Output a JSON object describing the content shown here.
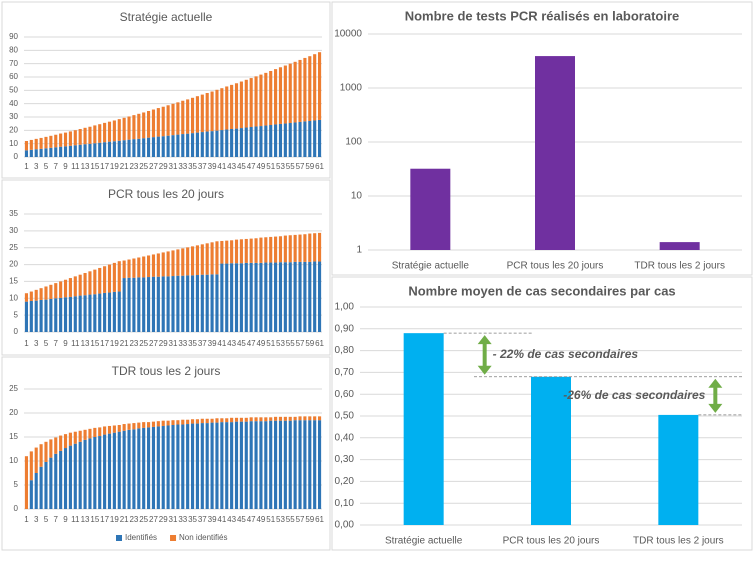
{
  "chart_data": [
    {
      "type": "stackedbar",
      "title": "Stratégie actuelle",
      "categories": [
        1,
        null,
        3,
        null,
        5,
        null,
        7,
        null,
        9,
        null,
        11,
        null,
        13,
        null,
        15,
        null,
        17,
        null,
        19,
        null,
        21,
        null,
        23,
        null,
        25,
        null,
        27,
        null,
        29,
        null,
        31,
        null,
        33,
        null,
        35,
        null,
        37,
        null,
        39,
        null,
        41,
        null,
        43,
        null,
        45,
        null,
        47,
        null,
        49,
        null,
        51,
        null,
        53,
        null,
        55,
        null,
        57,
        null,
        59,
        null,
        61
      ],
      "series": [
        {
          "color": "#2e75b6",
          "values": [
            5.0,
            5.4,
            5.8,
            6.1,
            6.5,
            6.9,
            7.3,
            7.7,
            8.0,
            8.4,
            8.8,
            9.2,
            9.6,
            9.9,
            10.3,
            10.7,
            11.1,
            11.5,
            11.8,
            12.2,
            12.6,
            13.0,
            13.4,
            13.7,
            14.1,
            14.5,
            14.9,
            15.3,
            15.6,
            16.0,
            16.4,
            16.8,
            17.2,
            17.5,
            17.9,
            18.3,
            18.7,
            19.1,
            19.4,
            19.8,
            20.2,
            20.6,
            21.0,
            21.3,
            21.7,
            22.1,
            22.5,
            22.9,
            23.2,
            23.6,
            24.0,
            24.4,
            24.8,
            25.1,
            25.5,
            25.9,
            26.3,
            26.7,
            27.0,
            27.4,
            27.8
          ]
        },
        {
          "color": "#ed7d31",
          "values": [
            7.0,
            7.4,
            7.8,
            8.2,
            8.6,
            9.0,
            9.4,
            9.9,
            10.3,
            10.8,
            11.3,
            11.8,
            12.3,
            12.8,
            13.4,
            13.9,
            14.5,
            15.0,
            15.6,
            16.2,
            16.8,
            17.4,
            18.0,
            18.7,
            19.3,
            20.0,
            20.7,
            21.4,
            22.1,
            22.8,
            23.5,
            24.2,
            25.0,
            25.7,
            26.5,
            27.3,
            28.1,
            28.9,
            29.7,
            30.6,
            31.4,
            32.3,
            33.1,
            34.0,
            34.9,
            35.8,
            36.7,
            37.6,
            38.6,
            39.5,
            40.5,
            41.5,
            42.5,
            43.5,
            44.5,
            45.5,
            46.5,
            47.6,
            48.6,
            49.7,
            50.8
          ]
        }
      ],
      "ylim": [
        0,
        90
      ],
      "yticks": [
        0,
        10,
        20,
        30,
        40,
        50,
        60,
        70,
        80,
        90
      ],
      "grid": true
    },
    {
      "type": "stackedbar",
      "title": "PCR tous les 20 jours",
      "categories": [
        1,
        null,
        3,
        null,
        5,
        null,
        7,
        null,
        9,
        null,
        11,
        null,
        13,
        null,
        15,
        null,
        17,
        null,
        19,
        null,
        21,
        null,
        23,
        null,
        25,
        null,
        27,
        null,
        29,
        null,
        31,
        null,
        33,
        null,
        35,
        null,
        37,
        null,
        39,
        null,
        41,
        null,
        43,
        null,
        45,
        null,
        47,
        null,
        49,
        null,
        51,
        null,
        53,
        null,
        55,
        null,
        57,
        null,
        59,
        null,
        61
      ],
      "series": [
        {
          "color": "#2e75b6",
          "values": [
            9.0,
            9.2,
            9.3,
            9.5,
            9.6,
            9.8,
            10.0,
            10.1,
            10.3,
            10.4,
            10.6,
            10.8,
            10.9,
            11.1,
            11.2,
            11.4,
            11.6,
            11.7,
            11.9,
            12.0,
            16.0,
            16.1,
            16.1,
            16.2,
            16.2,
            16.3,
            16.4,
            16.4,
            16.5,
            16.5,
            16.6,
            16.7,
            16.7,
            16.8,
            16.8,
            16.9,
            17.0,
            17.0,
            17.1,
            17.1,
            20.3,
            20.3,
            20.4,
            20.4,
            20.4,
            20.5,
            20.5,
            20.5,
            20.5,
            20.6,
            20.6,
            20.6,
            20.7,
            20.7,
            20.7,
            20.8,
            20.8,
            20.8,
            20.8,
            20.9,
            20.9
          ]
        },
        {
          "color": "#ed7d31",
          "values": [
            2.5,
            2.8,
            3.2,
            3.5,
            3.9,
            4.2,
            4.5,
            4.9,
            5.2,
            5.6,
            5.9,
            6.2,
            6.6,
            6.9,
            7.3,
            7.6,
            7.9,
            8.3,
            8.6,
            9.0,
            5.2,
            5.4,
            5.7,
            5.9,
            6.2,
            6.4,
            6.6,
            6.9,
            7.1,
            7.4,
            7.6,
            7.8,
            8.1,
            8.3,
            8.6,
            8.8,
            9.0,
            9.3,
            9.5,
            9.8,
            6.7,
            6.8,
            6.8,
            7.0,
            7.1,
            7.1,
            7.2,
            7.3,
            7.5,
            7.5,
            7.6,
            7.7,
            7.7,
            7.9,
            8.0,
            8.0,
            8.1,
            8.2,
            8.4,
            8.4,
            8.5
          ]
        }
      ],
      "ylim": [
        0,
        35
      ],
      "yticks": [
        0,
        5,
        10,
        15,
        20,
        25,
        30,
        35
      ],
      "grid": true
    },
    {
      "type": "stackedbar",
      "title": "TDR tous les 2 jours",
      "categories": [
        1,
        null,
        3,
        null,
        5,
        null,
        7,
        null,
        9,
        null,
        11,
        null,
        13,
        null,
        15,
        null,
        17,
        null,
        19,
        null,
        21,
        null,
        23,
        null,
        25,
        null,
        27,
        null,
        29,
        null,
        31,
        null,
        33,
        null,
        35,
        null,
        37,
        null,
        39,
        null,
        41,
        null,
        43,
        null,
        45,
        null,
        47,
        null,
        49,
        null,
        51,
        null,
        53,
        null,
        55,
        null,
        57,
        null,
        59,
        null,
        61
      ],
      "series": [
        {
          "name": "Identifiés",
          "color": "#2e75b6",
          "values": [
            0,
            6.0,
            7.5,
            8.8,
            9.8,
            10.7,
            11.5,
            12.1,
            12.7,
            13.2,
            13.6,
            14.0,
            14.4,
            14.7,
            15.0,
            15.2,
            15.5,
            15.7,
            15.9,
            16.1,
            16.3,
            16.5,
            16.6,
            16.8,
            16.9,
            17.0,
            17.1,
            17.2,
            17.3,
            17.4,
            17.5,
            17.6,
            17.6,
            17.7,
            17.8,
            17.8,
            17.9,
            17.9,
            18.0,
            18.0,
            18.1,
            18.1,
            18.1,
            18.2,
            18.2,
            18.2,
            18.3,
            18.3,
            18.3,
            18.3,
            18.4,
            18.4,
            18.4,
            18.4,
            18.4,
            18.5,
            18.5,
            18.5,
            18.5,
            18.5,
            18.5
          ]
        },
        {
          "name": "Non identifiés",
          "color": "#ed7d31",
          "values": [
            11.0,
            6.0,
            5.3,
            4.7,
            4.2,
            3.8,
            3.4,
            3.2,
            2.9,
            2.7,
            2.5,
            2.3,
            2.1,
            2.0,
            1.9,
            1.8,
            1.7,
            1.6,
            1.5,
            1.4,
            1.4,
            1.3,
            1.3,
            1.2,
            1.2,
            1.1,
            1.1,
            1.1,
            1.1,
            1.0,
            1.0,
            0.9,
            1.0,
            0.9,
            0.9,
            0.9,
            0.9,
            0.9,
            0.8,
            0.9,
            0.8,
            0.8,
            0.9,
            0.8,
            0.8,
            0.8,
            0.8,
            0.8,
            0.8,
            0.8,
            0.7,
            0.8,
            0.8,
            0.8,
            0.8,
            0.7,
            0.8,
            0.8,
            0.8,
            0.8,
            0.8
          ]
        }
      ],
      "ylim": [
        0,
        25
      ],
      "yticks": [
        0,
        5,
        10,
        15,
        20,
        25
      ],
      "grid": true,
      "legend": "bottom"
    },
    {
      "type": "bar",
      "title": "Nombre de tests PCR réalisés en laboratoire",
      "categories": [
        "Stratégie actuelle",
        "PCR tous les 20 jours",
        "TDR tous les 2 jours"
      ],
      "values": [
        32,
        3900,
        1.4
      ],
      "color": "#7030a0",
      "log_scale": true,
      "ylim": [
        1,
        10000
      ],
      "yticks": [
        1,
        10,
        100,
        1000,
        10000
      ],
      "grid": true
    },
    {
      "type": "bar",
      "title": "Nombre moyen de cas secondaires par cas",
      "categories": [
        "Stratégie actuelle",
        "PCR tous les 20 jours",
        "TDR tous les 2 jours"
      ],
      "values": [
        0.88,
        0.68,
        0.505
      ],
      "color": "#00b0f0",
      "ylim": [
        0,
        1
      ],
      "yticks": [
        {
          "value": 0,
          "label": "0,00"
        },
        {
          "value": 0.1,
          "label": "0,10"
        },
        {
          "value": 0.2,
          "label": "0,20"
        },
        {
          "value": 0.3,
          "label": "0,30"
        },
        {
          "value": 0.4,
          "label": "0,40"
        },
        {
          "value": 0.5,
          "label": "0,50"
        },
        {
          "value": 0.6,
          "label": "0,60"
        },
        {
          "value": 0.7,
          "label": "0,70"
        },
        {
          "value": 0.8,
          "label": "0,80"
        },
        {
          "value": 0.9,
          "label": "0,90"
        },
        {
          "value": 1,
          "label": "1,00"
        }
      ],
      "grid": true,
      "annotations": [
        "- 22% de cas secondaires",
        "-26% de cas secondaires"
      ]
    }
  ]
}
